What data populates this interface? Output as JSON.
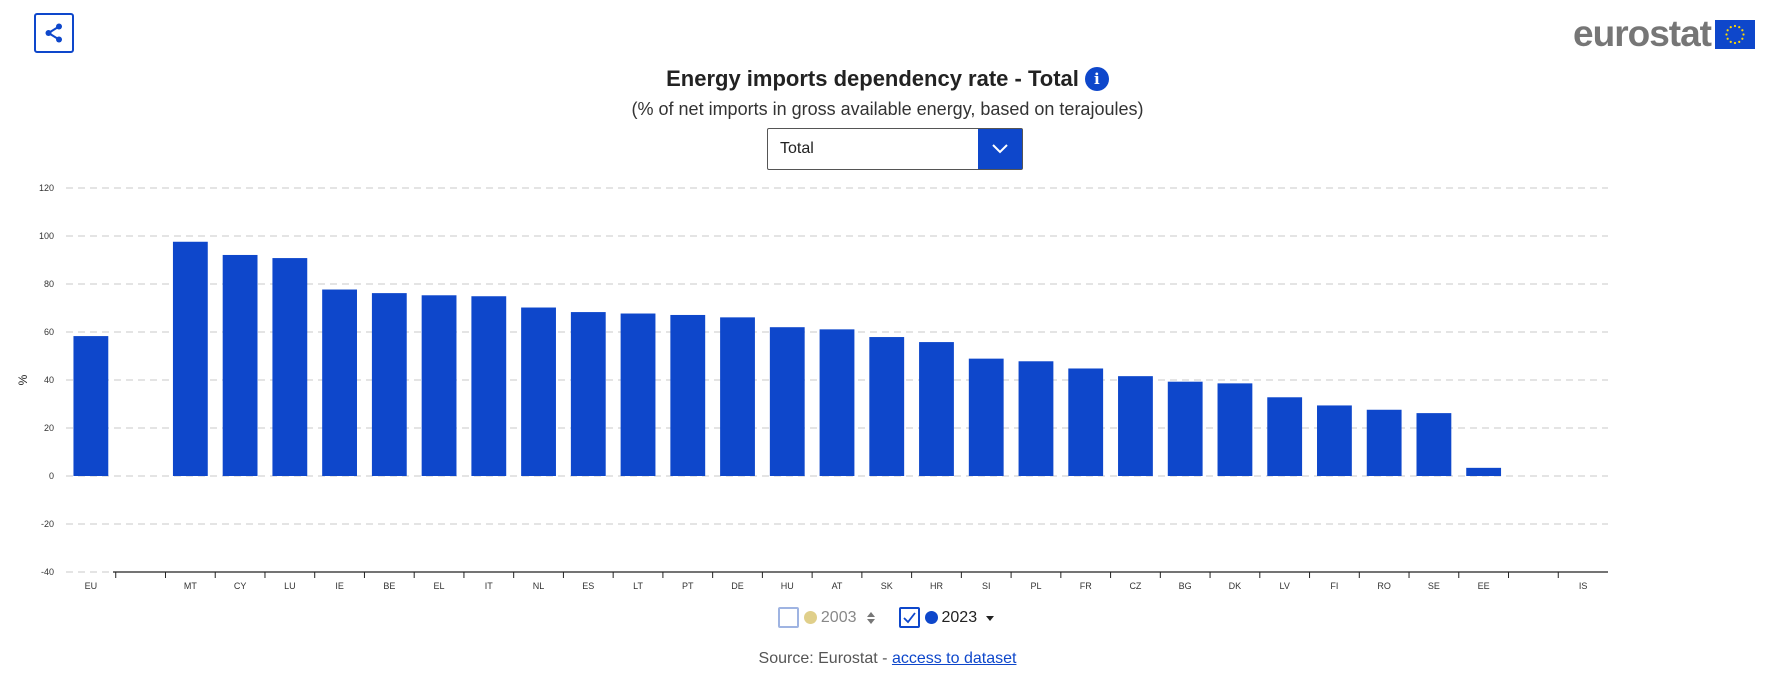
{
  "header": {
    "share_icon": "share-icon",
    "logo_text": "eurostat",
    "logo_icon": "eu-flag-icon"
  },
  "title": "Energy imports dependency rate - Total",
  "info_icon": "info-icon",
  "subtitle": "(% of net imports in gross available energy, based on terajoules)",
  "dropdown": {
    "selected": "Total",
    "icon": "chevron-down-icon"
  },
  "legend": {
    "items": [
      {
        "label": "2003",
        "checked": false,
        "color": "#e0cf8a",
        "icon": "sort-icon"
      },
      {
        "label": "2023",
        "checked": true,
        "color": "#0e47cb",
        "icon": "caret-down-icon"
      }
    ]
  },
  "source": {
    "prefix": "Source: Eurostat - ",
    "link": "access to dataset"
  },
  "colors": {
    "accent": "#0e47cb",
    "bar": "#0e47cb",
    "grid": "#c8c8c8"
  },
  "chart_data": {
    "type": "bar",
    "title": "Energy imports dependency rate - Total",
    "ylabel": "%",
    "xlabel": "",
    "ylim": [
      -40,
      120
    ],
    "yticks": [
      120,
      100,
      80,
      60,
      40,
      20,
      0,
      -20,
      -40
    ],
    "grid": true,
    "categories": [
      "EU",
      "",
      "MT",
      "CY",
      "LU",
      "IE",
      "BE",
      "EL",
      "IT",
      "NL",
      "ES",
      "LT",
      "PT",
      "DE",
      "HU",
      "AT",
      "SK",
      "HR",
      "SI",
      "PL",
      "FR",
      "CZ",
      "BG",
      "DK",
      "LV",
      "FI",
      "RO",
      "SE",
      "EE",
      "",
      "IS"
    ],
    "series": [
      {
        "name": "2023",
        "values": [
          58.3,
          null,
          97.6,
          92.1,
          90.8,
          77.7,
          76.2,
          75.3,
          74.9,
          70.2,
          68.3,
          67.7,
          67.1,
          66.1,
          62.0,
          61.1,
          57.9,
          55.8,
          48.9,
          47.8,
          44.8,
          41.6,
          39.3,
          38.6,
          32.8,
          29.4,
          27.6,
          26.2,
          3.4,
          null,
          null
        ]
      }
    ]
  }
}
